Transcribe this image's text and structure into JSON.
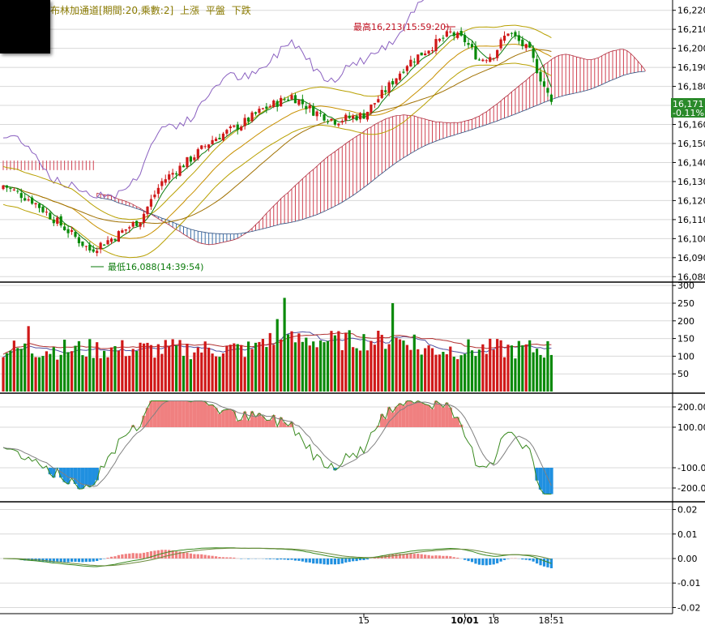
{
  "legend": {
    "indicator": "布林加通道[期間:20,乘數:2]",
    "up": "上漲",
    "flat": "平盤",
    "down": "下跌"
  },
  "colors": {
    "up": "#d01818",
    "down": "#0a8a0a",
    "cloud_up": "#d04050",
    "cloud_down": "#3a6ea8",
    "lagging": "#8a60c0",
    "boll": "#b8a000",
    "ma_fast": "#0a7a0a",
    "osc_pos": "#f08080",
    "osc_neg": "#2090e0",
    "hist_pos": "#f08080",
    "hist_neg": "#2090e0",
    "price_badge": "#2a8a2a"
  },
  "chart_data": [
    {
      "type": "candlestick",
      "yticks": [
        16080,
        16090,
        16100,
        16110,
        16120,
        16130,
        16140,
        16150,
        16160,
        16170,
        16180,
        16190,
        16200,
        16210,
        16220
      ],
      "ylim": [
        16078,
        16222
      ],
      "annotations": {
        "high": "最高16,213(15:59:20)",
        "low": "最低16,088(14:39:54)",
        "last_price": "16,171",
        "last_change": "-0.11%"
      }
    },
    {
      "type": "bar",
      "yticks": [
        50,
        100,
        150,
        200,
        250,
        300
      ],
      "ylim": [
        0,
        305
      ]
    },
    {
      "type": "area",
      "yticks": [
        "200.00",
        "100.00",
        "-100.00",
        "-200.00"
      ],
      "ylim": [
        -260,
        260
      ]
    },
    {
      "type": "bar",
      "yticks": [
        "0.02",
        "0.01",
        "0.00",
        "-0.01",
        "-0.02"
      ],
      "ylim": [
        -0.0225,
        0.0225
      ]
    }
  ],
  "xaxis": {
    "labels": [
      {
        "text": "15",
        "bar": 100
      },
      {
        "text": "10/01",
        "bar": 128
      },
      {
        "text": "18",
        "bar": 136
      },
      {
        "text": "18:51",
        "bar": 152
      }
    ]
  }
}
